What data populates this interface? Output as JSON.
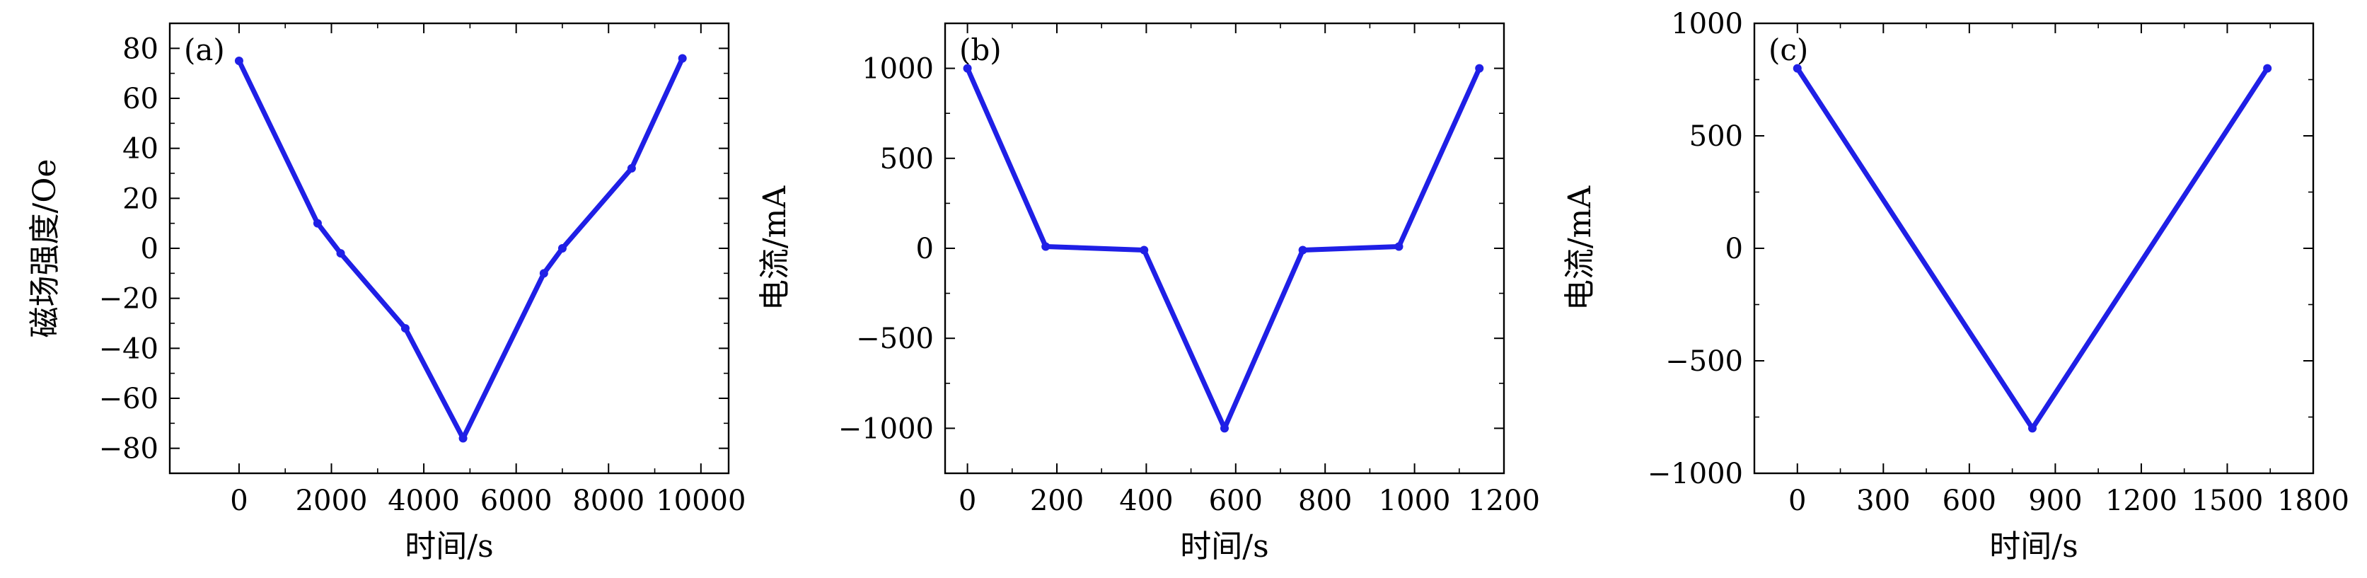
{
  "chart_data": [
    {
      "type": "line",
      "panel_label": "(a)",
      "xlabel": "时间/s",
      "ylabel": "磁场强度/Oe",
      "xlim": [
        -1500,
        10600
      ],
      "ylim": [
        -90,
        90
      ],
      "xticks": [
        0,
        2000,
        4000,
        6000,
        8000,
        10000
      ],
      "yticks": [
        -80,
        -60,
        -40,
        -20,
        0,
        20,
        40,
        60,
        80
      ],
      "xtick_labels": [
        "0",
        "2000",
        "4000",
        "6000",
        "8000",
        "10000"
      ],
      "ytick_labels": [
        "−80",
        "−60",
        "−40",
        "−20",
        "0",
        "20",
        "40",
        "60",
        "80"
      ],
      "color": "#1f1fe6",
      "grid": false,
      "series": [
        {
          "x": [
            0,
            1700,
            2200,
            3600,
            4850,
            6600,
            7000,
            8500,
            9600
          ],
          "y": [
            75,
            10,
            -2,
            -32,
            -76,
            -10,
            0,
            32,
            76
          ]
        }
      ]
    },
    {
      "type": "line",
      "panel_label": "(b)",
      "xlabel": "时间/s",
      "ylabel": "电流/mA",
      "xlim": [
        -50,
        1200
      ],
      "ylim": [
        -1250,
        1250
      ],
      "xticks": [
        0,
        200,
        400,
        600,
        800,
        1000,
        1200
      ],
      "yticks": [
        -1000,
        -500,
        0,
        500,
        1000
      ],
      "xtick_labels": [
        "0",
        "200",
        "400",
        "600",
        "800",
        "1000",
        "1200"
      ],
      "ytick_labels": [
        "−1000",
        "−500",
        "0",
        "500",
        "1000"
      ],
      "color": "#1f1fe6",
      "grid": false,
      "series": [
        {
          "x": [
            0,
            175,
            395,
            575,
            750,
            965,
            1145
          ],
          "y": [
            1000,
            10,
            -10,
            -1000,
            -10,
            10,
            1000
          ]
        }
      ]
    },
    {
      "type": "line",
      "panel_label": "(c)",
      "xlabel": "时间/s",
      "ylabel": "电流/mA",
      "xlim": [
        -150,
        1800
      ],
      "ylim": [
        -1000,
        1000
      ],
      "xticks": [
        0,
        300,
        600,
        900,
        1200,
        1500,
        1800
      ],
      "yticks": [
        -1000,
        -500,
        0,
        500,
        1000
      ],
      "xtick_labels": [
        "0",
        "300",
        "600",
        "900",
        "1200",
        "1500",
        "1800"
      ],
      "ytick_labels": [
        "−1000",
        "−500",
        "0",
        "500",
        "1000"
      ],
      "color": "#1f1fe6",
      "grid": false,
      "series": [
        {
          "x": [
            0,
            820,
            1640
          ],
          "y": [
            800,
            -800,
            800
          ]
        }
      ]
    }
  ]
}
